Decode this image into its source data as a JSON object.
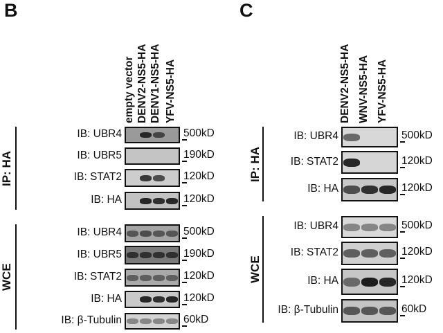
{
  "panels": [
    {
      "letter": "B",
      "lanes": [
        "empty vector",
        "DENV2-NS5-HA",
        "DENV1-NS5-HA",
        "YFV-NS5-HA"
      ],
      "groups": [
        {
          "label": "IP: HA",
          "rows": [
            {
              "ib": "IB: UBR4",
              "mw": "500kD",
              "bg": "#9a9a9a",
              "bands": [
                0,
                0.85,
                0.7,
                0.25
              ]
            },
            {
              "ib": "IB: UBR5",
              "mw": "190kD",
              "bg": "#c4c4c4",
              "bands": [
                0,
                0,
                0,
                0
              ]
            },
            {
              "ib": "IB: STAT2",
              "mw": "120kD",
              "bg": "#cdcdcd",
              "bands": [
                0,
                0.75,
                0.65,
                0
              ]
            },
            {
              "ib": "IB: HA",
              "mw": "120kD",
              "bg": "#c2c2c2",
              "bands": [
                0,
                0.85,
                0.8,
                0.85
              ]
            }
          ]
        },
        {
          "label": "WCE",
          "rows": [
            {
              "ib": "IB: UBR4",
              "mw": "500kD",
              "bg": "#a5a5a5",
              "bands": [
                0.6,
                0.65,
                0.6,
                0.6
              ]
            },
            {
              "ib": "IB: UBR5",
              "mw": "190kD",
              "bg": "#7a7a7a",
              "bands": [
                0.8,
                0.8,
                0.8,
                0.8
              ]
            },
            {
              "ib": "IB: STAT2",
              "mw": "120kD",
              "bg": "#a9a9a9",
              "bands": [
                0.55,
                0.55,
                0.55,
                0.55
              ]
            },
            {
              "ib": "IB: HA",
              "mw": "120kD",
              "bg": "#c9c9c9",
              "bands": [
                0,
                0.85,
                0.8,
                0.85
              ]
            },
            {
              "ib": "IB: β-Tubulin",
              "mw": "60kD",
              "bg": "#d3d3d3",
              "bands": [
                0.35,
                0.35,
                0.35,
                0.35
              ]
            }
          ]
        }
      ]
    },
    {
      "letter": "C",
      "lanes": [
        "DENV2-NS5-HA",
        "WNV-NS5-HA",
        "YFV-NS5-HA"
      ],
      "groups": [
        {
          "label": "IP: HA",
          "rows": [
            {
              "ib": "IB: UBR4",
              "mw": "500kD",
              "bg": "#d8d8d8",
              "bands": [
                0.5,
                0,
                0
              ]
            },
            {
              "ib": "IB: STAT2",
              "mw": "120kD",
              "bg": "#d6d6d6",
              "bands": [
                0.85,
                0,
                0
              ]
            },
            {
              "ib": "IB: HA",
              "mw": "120kD",
              "bg": "#c8c8c8",
              "bands": [
                0.65,
                0.8,
                0.85
              ]
            }
          ]
        },
        {
          "label": "WCE",
          "rows": [
            {
              "ib": "IB: UBR4",
              "mw": "500kD",
              "bg": "#d9d9d9",
              "bands": [
                0.35,
                0.35,
                0.35
              ]
            },
            {
              "ib": "IB: STAT2",
              "mw": "120kD",
              "bg": "#cfcfcf",
              "bands": [
                0.55,
                0.55,
                0.55
              ]
            },
            {
              "ib": "IB: HA",
              "mw": "120kD",
              "bg": "#c6c6c6",
              "bands": [
                0.5,
                0.9,
                0.85
              ]
            },
            {
              "ib": "IB: β-Tubulin",
              "mw": "60kD",
              "bg": "#c3c3c3",
              "bands": [
                0.6,
                0.6,
                0.6
              ]
            }
          ]
        }
      ]
    }
  ]
}
